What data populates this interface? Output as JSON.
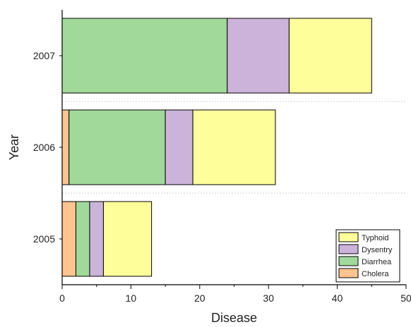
{
  "chart_data": {
    "type": "bar",
    "orientation": "horizontal",
    "stacked": true,
    "title": "",
    "xlabel": "Disease",
    "ylabel": "Year",
    "categories": [
      "2005",
      "2006",
      "2007"
    ],
    "xlim": [
      0,
      50
    ],
    "xticks": [
      "0",
      "10",
      "20",
      "30",
      "40",
      "50"
    ],
    "grid": false,
    "legend_position": "bottom-right",
    "series": [
      {
        "name": "Cholera",
        "color": "#fdc48f",
        "values": [
          2,
          1,
          0
        ]
      },
      {
        "name": "Diarrhea",
        "color": "#a1d99b",
        "values": [
          2,
          14,
          24
        ]
      },
      {
        "name": "Dysentry",
        "color": "#cbb3d9",
        "values": [
          2,
          4,
          9
        ]
      },
      {
        "name": "Typhoid",
        "color": "#fefe9b",
        "values": [
          7,
          12,
          12
        ]
      }
    ]
  }
}
